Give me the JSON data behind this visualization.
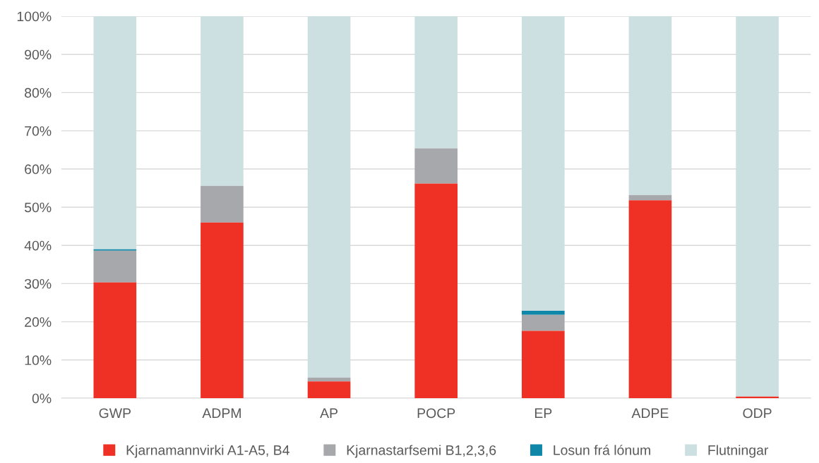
{
  "chart_data": {
    "type": "bar",
    "stacked": true,
    "categories": [
      "GWP",
      "ADPM",
      "AP",
      "POCP",
      "EP",
      "ADPE",
      "ODP"
    ],
    "series": [
      {
        "name": "Kjarnamannvirki A1-A5, B4",
        "color": "#ee3124",
        "values": [
          30.3,
          46.0,
          4.4,
          56.2,
          17.6,
          51.8,
          0.4
        ]
      },
      {
        "name": "Kjarnastarfsemi B1,2,3,6",
        "color": "#a7a8ab",
        "values": [
          8.3,
          9.6,
          1.0,
          9.2,
          4.2,
          1.4,
          0
        ]
      },
      {
        "name": "Losun frá lónum",
        "color": "#0e87a8",
        "values": [
          0.4,
          0,
          0,
          0,
          1.1,
          0,
          0
        ]
      },
      {
        "name": "Flutningar",
        "color": "#cde0e1",
        "values": [
          61.0,
          44.4,
          94.6,
          34.6,
          77.1,
          46.8,
          99.6
        ]
      }
    ],
    "ylim": [
      0,
      100
    ],
    "yticks": [
      {
        "value": 0,
        "label": "0%"
      },
      {
        "value": 10,
        "label": "10%"
      },
      {
        "value": 20,
        "label": "20%"
      },
      {
        "value": 30,
        "label": "30%"
      },
      {
        "value": 40,
        "label": "40%"
      },
      {
        "value": 50,
        "label": "50%"
      },
      {
        "value": 60,
        "label": "60%"
      },
      {
        "value": 70,
        "label": "70%"
      },
      {
        "value": 80,
        "label": "80%"
      },
      {
        "value": 90,
        "label": "90%"
      },
      {
        "value": 100,
        "label": "100%"
      }
    ],
    "grid": "y",
    "legend": "bottom"
  }
}
